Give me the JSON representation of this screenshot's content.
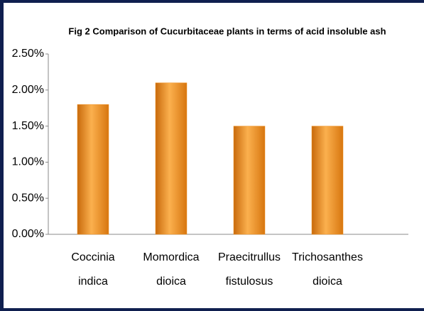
{
  "chart_data": {
    "type": "bar",
    "title": "Fig 2 Comparison of Cucurbitaceae plants in terms of acid insoluble ash",
    "categories": [
      "Coccinia indica",
      "Momordica dioica",
      "Praecitrullus fistulosus",
      "Trichosanthes dioica"
    ],
    "values": [
      1.8,
      2.1,
      1.5,
      1.5
    ],
    "color": "#f0901e",
    "ylim": [
      0,
      2.5
    ],
    "yticks": [
      {
        "value": 0,
        "label": "0.00%"
      },
      {
        "value": 0.5,
        "label": "0.50%"
      },
      {
        "value": 1,
        "label": "1.00%"
      },
      {
        "value": 1.5,
        "label": "1.50%"
      },
      {
        "value": 2,
        "label": "2.00%"
      },
      {
        "value": 2.5,
        "label": "2.50%"
      }
    ],
    "grid": false
  }
}
